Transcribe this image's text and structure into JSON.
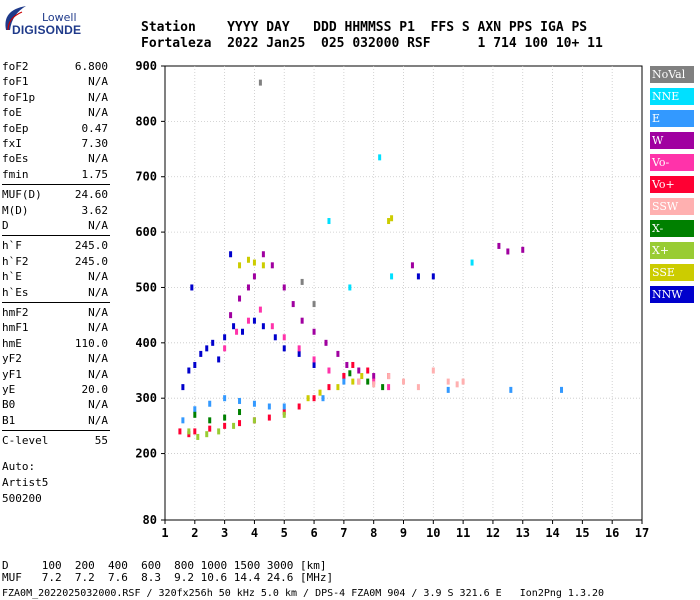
{
  "logo": {
    "line1": "Lowell",
    "line2": "DIGISONDE"
  },
  "header": {
    "row1": "Station    YYYY DAY   DDD HHMMSS P1  FFS S AXN PPS IGA PS",
    "row2": "Fortaleza  2022 Jan25  025 032000 RSF      1 714 100 10+ 11"
  },
  "params_group1": [
    {
      "name": "foF2",
      "value": "6.800"
    },
    {
      "name": "foF1",
      "value": "N/A"
    },
    {
      "name": "foF1p",
      "value": "N/A"
    },
    {
      "name": "foE",
      "value": "N/A"
    },
    {
      "name": "foEp",
      "value": "0.47"
    },
    {
      "name": "fxI",
      "value": "7.30"
    },
    {
      "name": "foEs",
      "value": "N/A"
    },
    {
      "name": "fmin",
      "value": "1.75"
    }
  ],
  "params_group2": [
    {
      "name": "MUF(D)",
      "value": "24.60"
    },
    {
      "name": "M(D)",
      "value": "3.62"
    },
    {
      "name": "D",
      "value": "N/A"
    }
  ],
  "params_group3": [
    {
      "name": "h`F",
      "value": "245.0"
    },
    {
      "name": "h`F2",
      "value": "245.0"
    },
    {
      "name": "h`E",
      "value": "N/A"
    },
    {
      "name": "h`Es",
      "value": "N/A"
    }
  ],
  "params_group4": [
    {
      "name": "hmF2",
      "value": "N/A"
    },
    {
      "name": "hmF1",
      "value": "N/A"
    },
    {
      "name": "hmE",
      "value": "110.0"
    },
    {
      "name": "yF2",
      "value": "N/A"
    },
    {
      "name": "yF1",
      "value": "N/A"
    },
    {
      "name": "yE",
      "value": "20.0"
    },
    {
      "name": "B0",
      "value": "N/A"
    },
    {
      "name": "B1",
      "value": "N/A"
    }
  ],
  "params_group5": [
    {
      "name": "C-level",
      "value": "55"
    }
  ],
  "autoscale": {
    "line1": "Auto:",
    "line2": "Artist5",
    "line3": "500200"
  },
  "legend": [
    {
      "label": "NoVal",
      "color": "#808080"
    },
    {
      "label": "NNE",
      "color": "#00e0ff"
    },
    {
      "label": "E",
      "color": "#3399ff"
    },
    {
      "label": "W",
      "color": "#a000a0"
    },
    {
      "label": "Vo-",
      "color": "#ff33aa"
    },
    {
      "label": "Vo+",
      "color": "#ff0033"
    },
    {
      "label": "SSW",
      "color": "#ffb0b0"
    },
    {
      "label": "X-",
      "color": "#008000"
    },
    {
      "label": "X+",
      "color": "#99cc33"
    },
    {
      "label": "SSE",
      "color": "#cccc00"
    },
    {
      "label": "NNW",
      "color": "#0000cc"
    }
  ],
  "footer": {
    "d_row": "D     100  200  400  600  800 1000 1500 3000 [km]",
    "muf_row": "MUF   7.2  7.2  7.6  8.3  9.2 10.6 14.4 24.6 [MHz]",
    "file_row": "FZA0M_2022025032000.RSF / 320fx256h 50 kHz 5.0 km / DPS-4 FZA0M 904 / 3.9 S 321.6 E   Ion2Png 1.3.20"
  },
  "chart_data": {
    "type": "scatter",
    "title": "",
    "xlabel": "",
    "ylabel": "",
    "xlim": [
      1,
      17
    ],
    "ylim": [
      80,
      900
    ],
    "x_ticks": [
      1,
      2,
      3,
      4,
      5,
      6,
      7,
      8,
      9,
      10,
      11,
      12,
      13,
      14,
      15,
      16,
      17
    ],
    "y_ticks": [
      80,
      200,
      300,
      400,
      500,
      600,
      700,
      800,
      900
    ],
    "grid": true,
    "legend_position": "right",
    "series": [
      {
        "name": "NNW",
        "points": [
          [
            1.6,
            320
          ],
          [
            1.8,
            350
          ],
          [
            2.0,
            360
          ],
          [
            2.2,
            380
          ],
          [
            2.4,
            390
          ],
          [
            2.6,
            400
          ],
          [
            2.8,
            370
          ],
          [
            3.0,
            410
          ],
          [
            3.3,
            430
          ],
          [
            3.6,
            420
          ],
          [
            4.0,
            440
          ],
          [
            4.3,
            430
          ],
          [
            4.7,
            410
          ],
          [
            5.0,
            390
          ],
          [
            5.5,
            380
          ],
          [
            6.0,
            360
          ],
          [
            9.5,
            520
          ],
          [
            10.0,
            520
          ],
          [
            1.9,
            500
          ],
          [
            3.2,
            560
          ]
        ]
      },
      {
        "name": "W",
        "points": [
          [
            3.2,
            450
          ],
          [
            3.5,
            480
          ],
          [
            3.8,
            500
          ],
          [
            4.0,
            520
          ],
          [
            4.3,
            560
          ],
          [
            4.6,
            540
          ],
          [
            5.0,
            500
          ],
          [
            5.3,
            470
          ],
          [
            5.6,
            440
          ],
          [
            6.0,
            420
          ],
          [
            6.4,
            400
          ],
          [
            6.8,
            380
          ],
          [
            7.1,
            360
          ],
          [
            7.5,
            350
          ],
          [
            8.0,
            340
          ],
          [
            12.2,
            575
          ],
          [
            12.5,
            565
          ],
          [
            13.0,
            568
          ],
          [
            9.3,
            540
          ]
        ]
      },
      {
        "name": "Vo-",
        "points": [
          [
            3.0,
            390
          ],
          [
            3.4,
            420
          ],
          [
            3.8,
            440
          ],
          [
            4.2,
            460
          ],
          [
            4.6,
            430
          ],
          [
            5.0,
            410
          ],
          [
            5.5,
            390
          ],
          [
            6.0,
            370
          ],
          [
            6.5,
            350
          ],
          [
            7.0,
            340
          ],
          [
            7.5,
            330
          ],
          [
            8.0,
            330
          ],
          [
            8.5,
            320
          ]
        ]
      },
      {
        "name": "Vo+",
        "points": [
          [
            1.5,
            240
          ],
          [
            1.8,
            235
          ],
          [
            2.0,
            240
          ],
          [
            2.5,
            245
          ],
          [
            3.0,
            250
          ],
          [
            3.5,
            255
          ],
          [
            4.0,
            260
          ],
          [
            4.5,
            265
          ],
          [
            5.0,
            275
          ],
          [
            5.5,
            285
          ],
          [
            6.0,
            300
          ],
          [
            6.5,
            320
          ],
          [
            7.0,
            340
          ],
          [
            7.3,
            360
          ],
          [
            7.8,
            350
          ],
          [
            8.5,
            340
          ]
        ]
      },
      {
        "name": "E",
        "points": [
          [
            1.6,
            260
          ],
          [
            2.0,
            280
          ],
          [
            2.5,
            290
          ],
          [
            3.0,
            300
          ],
          [
            3.5,
            295
          ],
          [
            4.0,
            290
          ],
          [
            4.5,
            285
          ],
          [
            5.0,
            285
          ],
          [
            6.3,
            300
          ],
          [
            7.0,
            330
          ],
          [
            10.5,
            315
          ],
          [
            12.6,
            315
          ],
          [
            14.3,
            315
          ]
        ]
      },
      {
        "name": "NNE",
        "points": [
          [
            6.5,
            620
          ],
          [
            8.6,
            520
          ],
          [
            11.3,
            545
          ],
          [
            7.2,
            500
          ],
          [
            8.2,
            735
          ]
        ]
      },
      {
        "name": "X-",
        "points": [
          [
            2.0,
            270
          ],
          [
            2.5,
            260
          ],
          [
            3.0,
            265
          ],
          [
            3.5,
            275
          ],
          [
            7.2,
            345
          ],
          [
            7.8,
            330
          ],
          [
            8.3,
            320
          ]
        ]
      },
      {
        "name": "X+",
        "points": [
          [
            1.8,
            240
          ],
          [
            2.1,
            230
          ],
          [
            2.4,
            235
          ],
          [
            2.8,
            240
          ],
          [
            3.3,
            250
          ],
          [
            4.0,
            260
          ],
          [
            5.0,
            270
          ]
        ]
      },
      {
        "name": "SSE",
        "points": [
          [
            3.5,
            540
          ],
          [
            3.8,
            550
          ],
          [
            4.0,
            545
          ],
          [
            4.3,
            540
          ],
          [
            5.8,
            300
          ],
          [
            6.2,
            310
          ],
          [
            6.8,
            320
          ],
          [
            7.3,
            330
          ],
          [
            7.6,
            340
          ],
          [
            8.5,
            620
          ],
          [
            8.6,
            625
          ]
        ]
      },
      {
        "name": "SSW",
        "points": [
          [
            7.5,
            330
          ],
          [
            8.0,
            325
          ],
          [
            8.5,
            340
          ],
          [
            9.0,
            330
          ],
          [
            9.5,
            320
          ],
          [
            10.0,
            350
          ],
          [
            10.5,
            330
          ],
          [
            10.8,
            325
          ],
          [
            11.0,
            330
          ]
        ]
      },
      {
        "name": "NoVal",
        "points": [
          [
            4.2,
            870
          ],
          [
            5.6,
            510
          ],
          [
            6.0,
            470
          ]
        ]
      }
    ]
  }
}
